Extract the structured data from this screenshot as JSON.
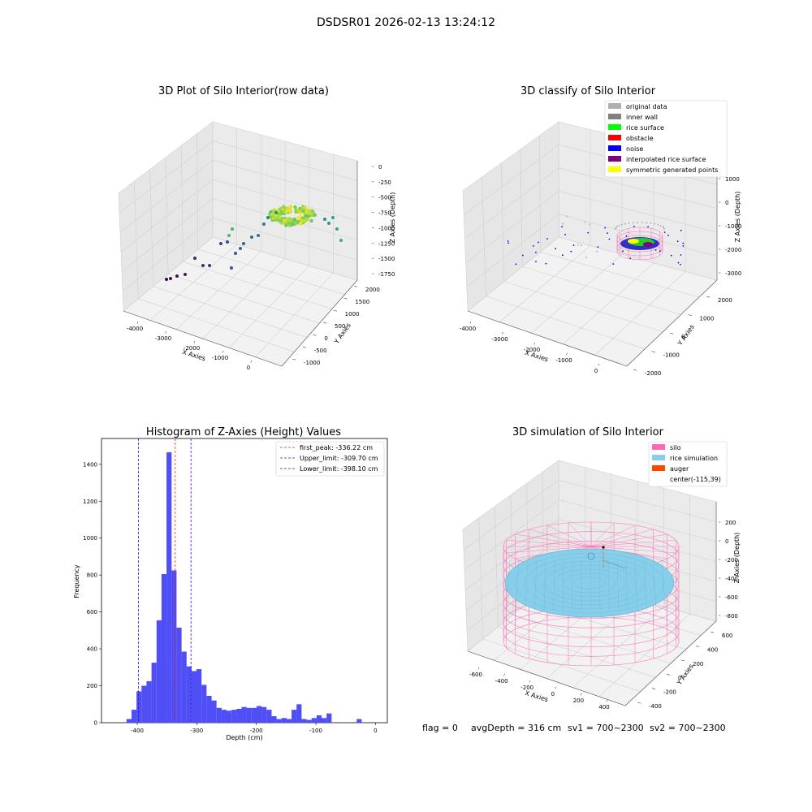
{
  "figure": {
    "suptitle": "DSDSR01 2026-02-13 13:24:12",
    "status_line": {
      "flag": "flag = 0",
      "avg_depth": "avgDepth = 316 cm",
      "sv1": "sv1 = 700~2300",
      "sv2": "sv2 = 700~2300"
    }
  },
  "chart_data": [
    {
      "type": "scatter",
      "projection": "3d",
      "title": "3D Plot of Silo Interior(row data)",
      "xlabel": "X Axies",
      "ylabel": "Y Axies",
      "zlabel": "Z Axies (Depth)",
      "xticks": [
        "-4000",
        "-3000",
        "-2000",
        "-1000",
        "0"
      ],
      "yticks": [
        "-1000",
        "-500",
        "0",
        "500",
        "1000",
        "1500",
        "2000"
      ],
      "zticks": [
        "0",
        "-250",
        "-500",
        "-750",
        "-1000",
        "-1250",
        "-1500",
        "-1750"
      ],
      "colormap": "viridis",
      "grid": true,
      "pane_color": "#f2f2f2"
    },
    {
      "type": "scatter",
      "projection": "3d",
      "title": "3D classify of Silo Interior",
      "xlabel": "X Axies",
      "ylabel": "Y Axies",
      "zlabel": "Z Axies (Depth)",
      "xticks": [
        "-4000",
        "-3000",
        "-2000",
        "-1000",
        "0"
      ],
      "yticks": [
        "-2000",
        "-1000",
        "0",
        "1000",
        "2000"
      ],
      "zticks": [
        "1000",
        "0",
        "-1000",
        "-2000",
        "-3000"
      ],
      "legend_position": "top-right",
      "legend": [
        {
          "label": "original data",
          "color": "#b0b0b0"
        },
        {
          "label": "inner wall",
          "color": "#808080"
        },
        {
          "label": "rice surface",
          "color": "#00ff00"
        },
        {
          "label": "obstacle",
          "color": "#ff0000"
        },
        {
          "label": "noise",
          "color": "#0000ff"
        },
        {
          "label": "interpolated rice surface",
          "color": "#800080"
        },
        {
          "label": "symmetric generated points",
          "color": "#ffff00"
        }
      ],
      "grid": true
    },
    {
      "type": "bar",
      "subtype": "histogram",
      "title": "Histogram of Z-Axies (Height) Values",
      "xlabel": "Depth (cm)",
      "ylabel": "Frequency",
      "xlim": [
        -460,
        20
      ],
      "ylim": [
        0,
        1540
      ],
      "xticks": [
        -400,
        -300,
        -200,
        -100,
        0
      ],
      "yticks": [
        0,
        200,
        400,
        600,
        800,
        1000,
        1200,
        1400
      ],
      "bin_width": 8.4,
      "bin_start": -418.0,
      "bar_color": "#4f4ff5",
      "values": [
        20,
        70,
        170,
        200,
        225,
        325,
        555,
        805,
        1465,
        825,
        515,
        385,
        305,
        280,
        290,
        205,
        145,
        120,
        80,
        70,
        65,
        70,
        75,
        85,
        80,
        80,
        90,
        85,
        70,
        35,
        20,
        25,
        20,
        70,
        100,
        20,
        15,
        25,
        40,
        25,
        50,
        0,
        0,
        0,
        0,
        0,
        20
      ],
      "lines": [
        {
          "label": "first_peak: -336.22 cm",
          "x": -336.22,
          "color": "#e8242b"
        },
        {
          "label": "Upper_limit: -309.70 cm",
          "x": -309.7,
          "color": "#1a1adc"
        },
        {
          "label": "Lower_limit: -398.10 cm",
          "x": -398.1,
          "color": "#1a1adc"
        }
      ],
      "legend_position": "top-right"
    },
    {
      "type": "scatter",
      "projection": "3d",
      "subtype": "surface-wireframe",
      "title": "3D simulation of Silo Interior",
      "xlabel": "X Axies",
      "ylabel": "Y Axies",
      "zlabel": "Z Axies (Depth)",
      "xticks": [
        "-600",
        "-400",
        "-200",
        "0",
        "200",
        "400"
      ],
      "yticks": [
        "-400",
        "-200",
        "0",
        "200",
        "400",
        "600"
      ],
      "zticks": [
        "200",
        "0",
        "-200",
        "-400",
        "-600",
        "-800"
      ],
      "legend_position": "top-right",
      "legend": [
        {
          "label": "silo",
          "color": "#ff69b4"
        },
        {
          "label": "rice simulation",
          "color": "#87ceeb"
        },
        {
          "label": "auger",
          "color": "#ff4500"
        },
        {
          "label": "center(-115,39)",
          "color": "none"
        }
      ],
      "grid": true
    }
  ]
}
